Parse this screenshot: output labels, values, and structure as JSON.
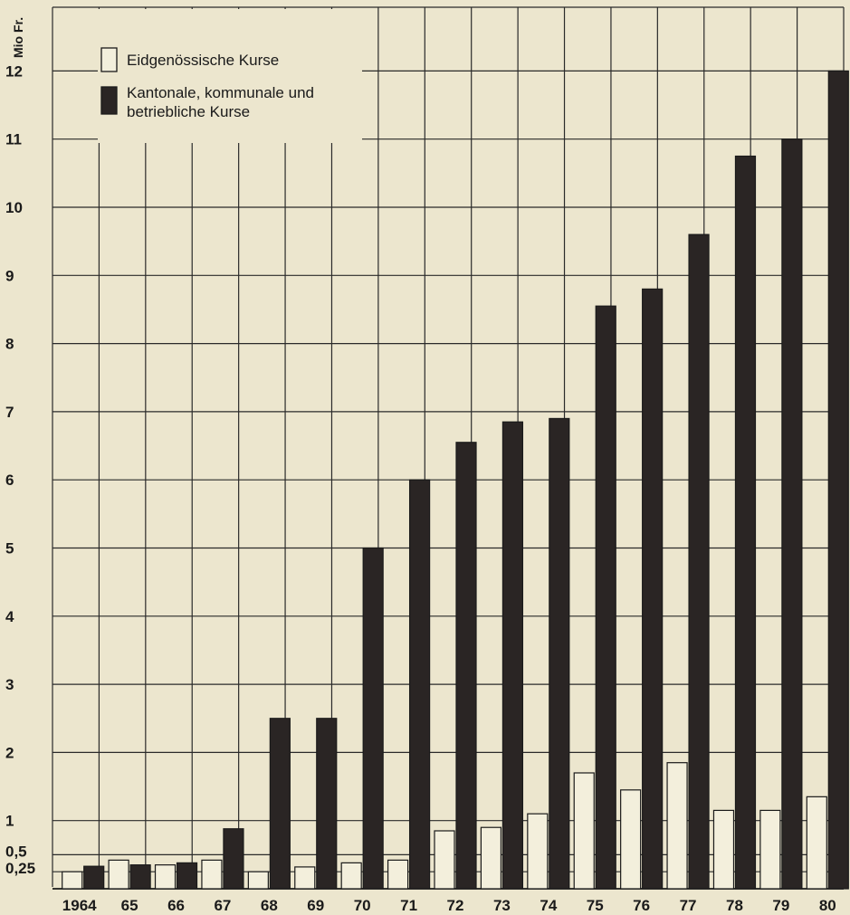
{
  "chart_data": {
    "type": "bar",
    "unit_label": "Mio Fr.",
    "categories": [
      "1964",
      "65",
      "66",
      "67",
      "68",
      "69",
      "70",
      "71",
      "72",
      "73",
      "74",
      "75",
      "76",
      "77",
      "78",
      "79",
      "80"
    ],
    "category_labels": [
      {
        "prefix": "19",
        "main": "64"
      },
      {
        "prefix": "",
        "main": "65"
      },
      {
        "prefix": "",
        "main": "66"
      },
      {
        "prefix": "",
        "main": "67"
      },
      {
        "prefix": "",
        "main": "68"
      },
      {
        "prefix": "",
        "main": "69"
      },
      {
        "prefix": "",
        "main": "70"
      },
      {
        "prefix": "",
        "main": "71"
      },
      {
        "prefix": "",
        "main": "72"
      },
      {
        "prefix": "",
        "main": "73"
      },
      {
        "prefix": "",
        "main": "74"
      },
      {
        "prefix": "",
        "main": "75"
      },
      {
        "prefix": "",
        "main": "76"
      },
      {
        "prefix": "",
        "main": "77"
      },
      {
        "prefix": "",
        "main": "78"
      },
      {
        "prefix": "",
        "main": "79"
      },
      {
        "prefix": "",
        "main": "80"
      }
    ],
    "series": [
      {
        "name": "Eidgenössische Kurse",
        "color": "#f3efdc",
        "values": [
          0.25,
          0.42,
          0.35,
          0.42,
          0.25,
          0.32,
          0.38,
          0.42,
          0.85,
          0.9,
          1.1,
          1.7,
          1.45,
          1.85,
          1.15,
          1.15,
          1.35
        ]
      },
      {
        "name": "Kantonale, kommunale und betriebliche Kurse",
        "color": "#2a2524",
        "values": [
          0.33,
          0.35,
          0.38,
          0.88,
          2.5,
          2.5,
          5.0,
          6.0,
          6.55,
          6.85,
          6.9,
          8.55,
          8.8,
          9.6,
          10.75,
          11.0,
          12.0
        ]
      }
    ],
    "legend_lines": [
      [
        "Eidgenössische Kurse"
      ],
      [
        "Kantonale, kommunale und",
        "betriebliche Kurse"
      ]
    ],
    "y_ticks": [
      0.25,
      0.5,
      1,
      2,
      3,
      4,
      5,
      6,
      7,
      8,
      9,
      10,
      11,
      12
    ],
    "y_tick_labels": [
      "0,25",
      "0,5",
      "1",
      "2",
      "3",
      "4",
      "5",
      "6",
      "7",
      "8",
      "9",
      "10",
      "11",
      "12"
    ],
    "ylim": [
      0,
      13
    ],
    "grid": true,
    "legend_position": "top-left",
    "colors": {
      "outline": "#1a1a1a",
      "grid": "#2a2a2a",
      "background": "#ece6ce"
    }
  }
}
